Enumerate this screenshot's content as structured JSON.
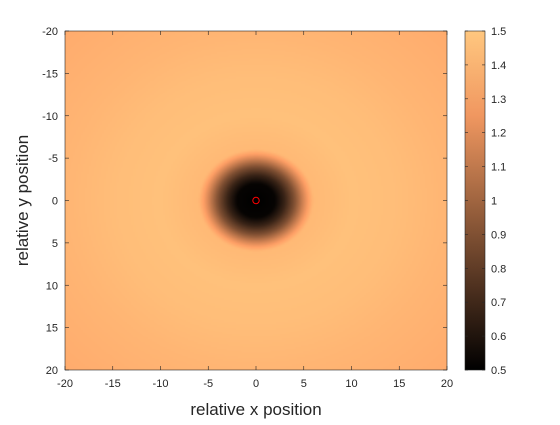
{
  "chart_data": {
    "type": "heatmap",
    "title": "",
    "xlabel": "relative x position",
    "ylabel": "relative y position",
    "xlim": [
      -20,
      20
    ],
    "ylim": [
      -20,
      20
    ],
    "y_direction": "reverse",
    "x_ticks": [
      "-20",
      "-15",
      "-10",
      "-5",
      "0",
      "5",
      "10",
      "15",
      "20"
    ],
    "y_ticks": [
      "-20",
      "-15",
      "-10",
      "-5",
      "0",
      "5",
      "10",
      "15",
      "20"
    ],
    "x_tick_values": [
      -20,
      -15,
      -10,
      -5,
      0,
      5,
      10,
      15,
      20
    ],
    "y_tick_values": [
      -20,
      -15,
      -10,
      -5,
      0,
      5,
      10,
      15,
      20
    ],
    "colorbar": {
      "range": [
        0.5,
        1.5
      ],
      "ticks": [
        "0.5",
        "0.6",
        "0.7",
        "0.8",
        "0.9",
        "1",
        "1.1",
        "1.2",
        "1.3",
        "1.4",
        "1.5"
      ],
      "tick_values": [
        0.5,
        0.6,
        0.7,
        0.8,
        0.9,
        1.0,
        1.1,
        1.2,
        1.3,
        1.4,
        1.5
      ],
      "colormap": "copper"
    },
    "field": {
      "center": [
        0,
        0
      ],
      "profile_r": [
        0,
        2,
        3,
        4,
        5,
        6,
        10,
        15,
        20,
        28.3
      ],
      "profile_v": [
        0.5,
        0.52,
        0.68,
        0.9,
        1.18,
        1.43,
        1.47,
        1.45,
        1.41,
        1.36
      ]
    },
    "marker": {
      "x": 0,
      "y": 0,
      "shape": "circle",
      "color": "#ff0000"
    },
    "grid": false
  }
}
